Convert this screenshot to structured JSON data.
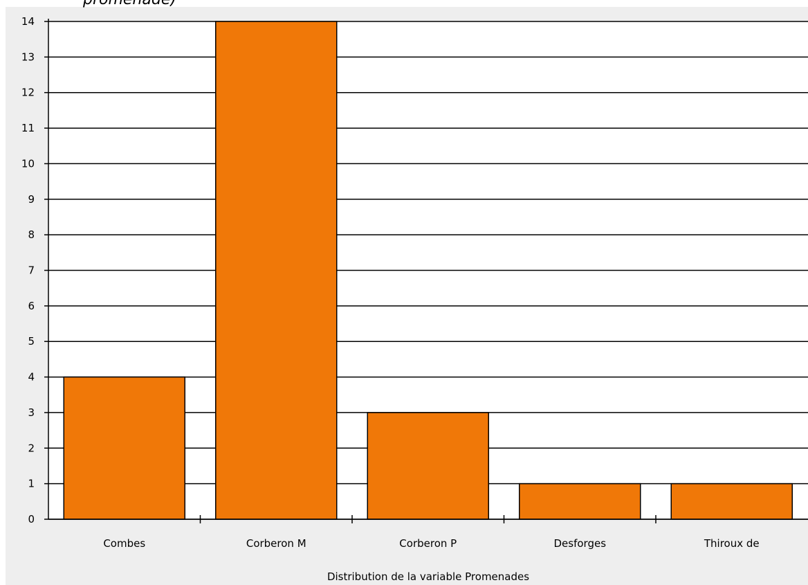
{
  "chart_data": {
    "type": "bar",
    "annotation": "promenade)",
    "xlabel": "Distribution de la variable Promenades",
    "categories": [
      "Combes",
      "Corberon M",
      "Corberon P",
      "Desforges",
      "Thiroux de"
    ],
    "values": [
      4,
      14,
      3,
      1,
      1
    ],
    "color": "#f07808",
    "ylim": [
      0,
      14
    ],
    "yticks": [
      0,
      1,
      2,
      3,
      4,
      5,
      6,
      7,
      8,
      9,
      10,
      11,
      12,
      13,
      14
    ],
    "grid": true
  }
}
